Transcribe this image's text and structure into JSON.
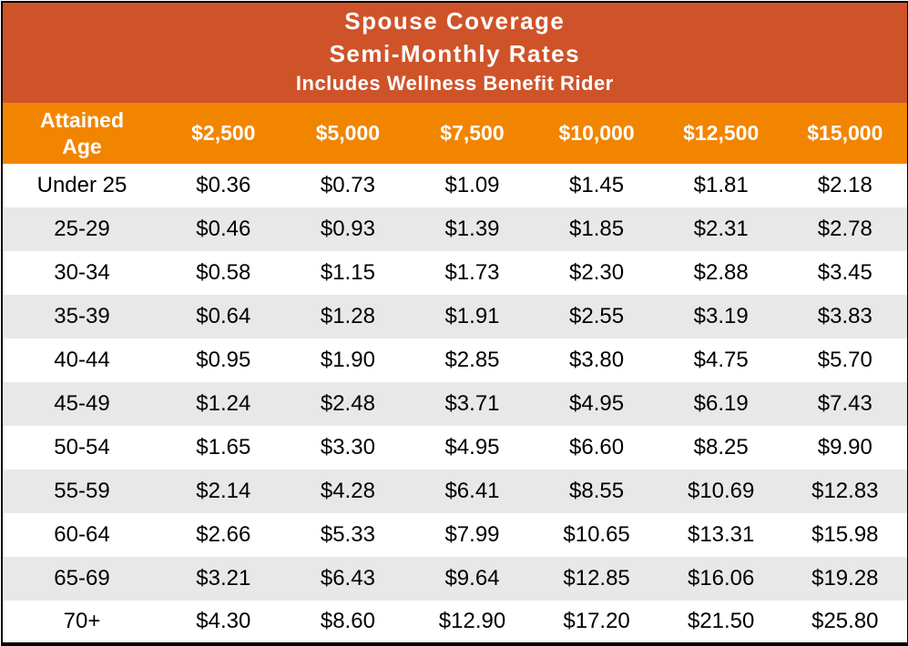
{
  "colors": {
    "title_bg": "#cf5329",
    "header_bg": "#f28500",
    "row_alt_bg": "#e8e8e8",
    "row_bg": "#ffffff",
    "border_color": "#000000",
    "header_text": "#ffffff",
    "body_text": "#000000"
  },
  "table": {
    "title_lines": [
      "Spouse Coverage",
      "Semi-Monthly Rates",
      "Includes Wellness Benefit Rider"
    ],
    "age_header": "Attained Age",
    "amount_headers": [
      "$2,500",
      "$5,000",
      "$7,500",
      "$10,000",
      "$12,500",
      "$15,000"
    ],
    "rows": [
      {
        "age": "Under 25",
        "rates": [
          "$0.36",
          "$0.73",
          "$1.09",
          "$1.45",
          "$1.81",
          "$2.18"
        ]
      },
      {
        "age": "25-29",
        "rates": [
          "$0.46",
          "$0.93",
          "$1.39",
          "$1.85",
          "$2.31",
          "$2.78"
        ]
      },
      {
        "age": "30-34",
        "rates": [
          "$0.58",
          "$1.15",
          "$1.73",
          "$2.30",
          "$2.88",
          "$3.45"
        ]
      },
      {
        "age": "35-39",
        "rates": [
          "$0.64",
          "$1.28",
          "$1.91",
          "$2.55",
          "$3.19",
          "$3.83"
        ]
      },
      {
        "age": "40-44",
        "rates": [
          "$0.95",
          "$1.90",
          "$2.85",
          "$3.80",
          "$4.75",
          "$5.70"
        ]
      },
      {
        "age": "45-49",
        "rates": [
          "$1.24",
          "$2.48",
          "$3.71",
          "$4.95",
          "$6.19",
          "$7.43"
        ]
      },
      {
        "age": "50-54",
        "rates": [
          "$1.65",
          "$3.30",
          "$4.95",
          "$6.60",
          "$8.25",
          "$9.90"
        ]
      },
      {
        "age": "55-59",
        "rates": [
          "$2.14",
          "$4.28",
          "$6.41",
          "$8.55",
          "$10.69",
          "$12.83"
        ]
      },
      {
        "age": "60-64",
        "rates": [
          "$2.66",
          "$5.33",
          "$7.99",
          "$10.65",
          "$13.31",
          "$15.98"
        ]
      },
      {
        "age": "65-69",
        "rates": [
          "$3.21",
          "$6.43",
          "$9.64",
          "$12.85",
          "$16.06",
          "$19.28"
        ]
      },
      {
        "age": "70+",
        "rates": [
          "$4.30",
          "$8.60",
          "$12.90",
          "$17.20",
          "$21.50",
          "$25.80"
        ]
      }
    ]
  }
}
